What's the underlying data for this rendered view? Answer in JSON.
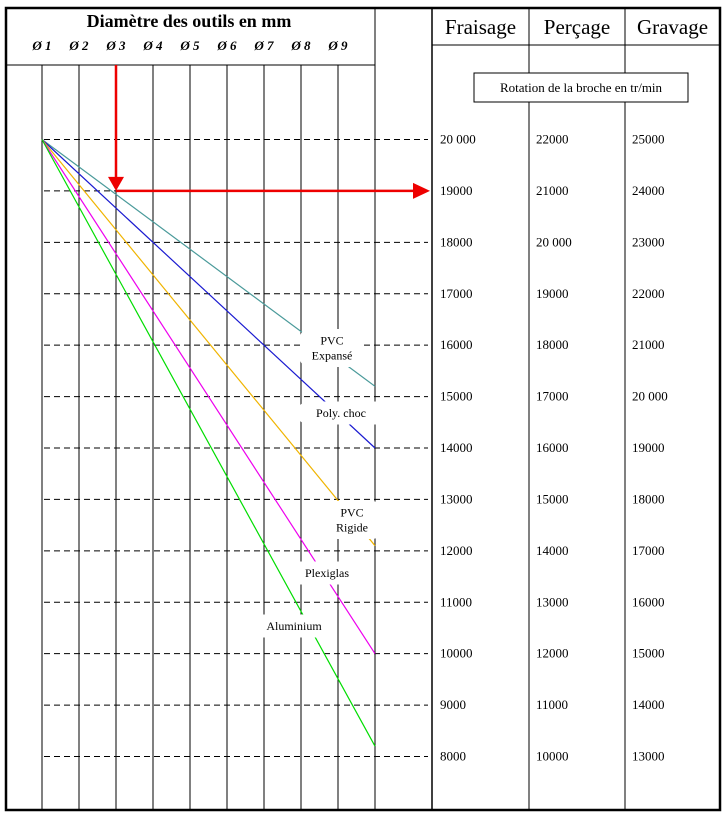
{
  "chart_data": {
    "type": "line",
    "title": "Diamètre des outils en mm",
    "diameters": [
      "Ø 1",
      "Ø 2",
      "Ø 3",
      "Ø 4",
      "Ø 5",
      "Ø 6",
      "Ø 7",
      "Ø 8",
      "Ø 9"
    ],
    "x_values": [
      1,
      2,
      3,
      4,
      5,
      6,
      7,
      8,
      9,
      10
    ],
    "column_headers": [
      "Fraisage",
      "Perçage",
      "Gravage"
    ],
    "box_label": "Rotation de la broche en tr/min",
    "scale_rows": [
      [
        "20 000",
        "22000",
        "25000"
      ],
      [
        "19000",
        "21000",
        "24000"
      ],
      [
        "18000",
        "20 000",
        "23000"
      ],
      [
        "17000",
        "19000",
        "22000"
      ],
      [
        "16000",
        "18000",
        "21000"
      ],
      [
        "15000",
        "17000",
        "20 000"
      ],
      [
        "14000",
        "16000",
        "19000"
      ],
      [
        "13000",
        "15000",
        "18000"
      ],
      [
        "12000",
        "14000",
        "17000"
      ],
      [
        "11000",
        "13000",
        "16000"
      ],
      [
        "10000",
        "12000",
        "15000"
      ],
      [
        "9000",
        "11000",
        "14000"
      ],
      [
        "8000",
        "10000",
        "13000"
      ]
    ],
    "fraisage_values": [
      20000,
      19000,
      18000,
      17000,
      16000,
      15000,
      14000,
      13000,
      12000,
      11000,
      10000,
      9000,
      8000
    ],
    "series": [
      {
        "name": "PVC Expansé",
        "label_lines": [
          "PVC",
          "Expansé"
        ],
        "color": "#4a9a9a",
        "start": [
          1,
          20000
        ],
        "end": [
          10,
          15200
        ]
      },
      {
        "name": "Poly. choc",
        "label_lines": [
          "Poly. choc"
        ],
        "color": "#1a1ad0",
        "start": [
          1,
          20000
        ],
        "end": [
          10,
          14000
        ]
      },
      {
        "name": "PVC Rigide",
        "label_lines": [
          "PVC",
          "Rigide"
        ],
        "color": "#f0b400",
        "start": [
          1,
          20000
        ],
        "end": [
          10,
          12100
        ]
      },
      {
        "name": "Plexiglas",
        "label_lines": [
          "Plexiglas"
        ],
        "color": "#ee00ee",
        "start": [
          1,
          20000
        ],
        "end": [
          10,
          10000
        ]
      },
      {
        "name": "Aluminium",
        "label_lines": [
          "Aluminium"
        ],
        "color": "#00dd00",
        "start": [
          1,
          20000
        ],
        "end": [
          10,
          8200
        ]
      }
    ],
    "example_reading": {
      "diameter": 3,
      "speed": 19000,
      "color": "#ee0000"
    },
    "xlim": [
      1,
      10
    ],
    "ylim": [
      8000,
      20000
    ],
    "grid": true
  }
}
